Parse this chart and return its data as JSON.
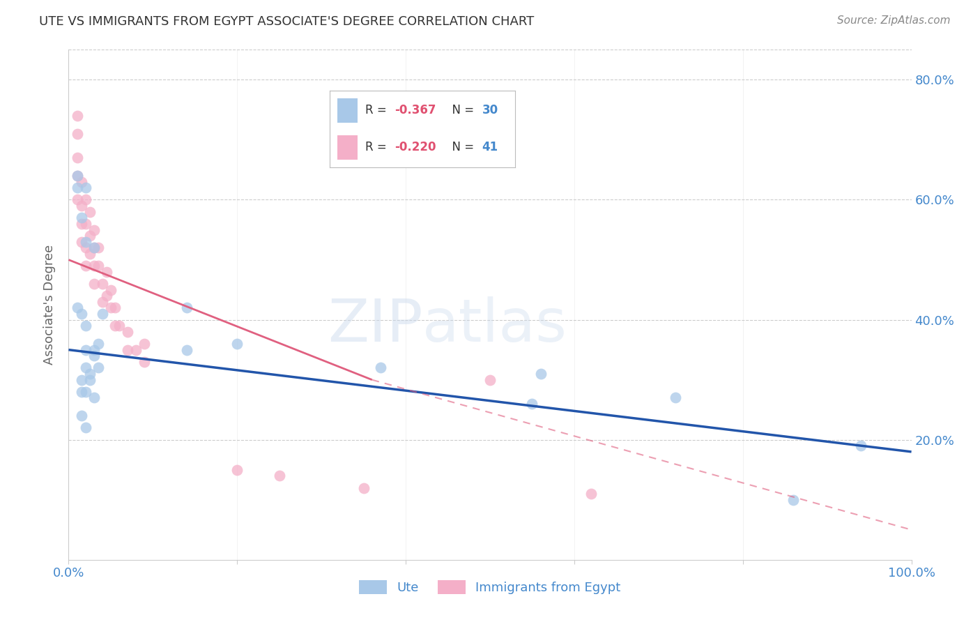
{
  "title": "UTE VS IMMIGRANTS FROM EGYPT ASSOCIATE'S DEGREE CORRELATION CHART",
  "source": "Source: ZipAtlas.com",
  "ylabel": "Associate's Degree",
  "watermark_zip": "ZIP",
  "watermark_atlas": "atlas",
  "blue_color": "#a8c8e8",
  "pink_color": "#f4afc8",
  "trendline_blue": "#2255aa",
  "trendline_pink": "#e06080",
  "background_color": "#ffffff",
  "grid_color": "#cccccc",
  "tick_color": "#4488cc",
  "title_color": "#333333",
  "source_color": "#888888",
  "legend_r_color": "#e05070",
  "legend_n_color": "#4488cc",
  "legend_label_color": "#333333",
  "blue_points_x": [
    1.0,
    1.0,
    2.0,
    1.5,
    2.0,
    3.0,
    1.0,
    1.5,
    2.0,
    4.0,
    3.0,
    2.0,
    3.5,
    3.0,
    2.0,
    2.5,
    3.5,
    1.5,
    2.5,
    1.5,
    2.0,
    3.0,
    1.5,
    2.0,
    14.0,
    20.0,
    14.0,
    37.0,
    55.0,
    56.0,
    72.0,
    86.0,
    94.0
  ],
  "blue_points_y": [
    64.0,
    62.0,
    62.0,
    57.0,
    53.0,
    52.0,
    42.0,
    41.0,
    39.0,
    41.0,
    35.0,
    35.0,
    36.0,
    34.0,
    32.0,
    31.0,
    32.0,
    30.0,
    30.0,
    28.0,
    28.0,
    27.0,
    24.0,
    22.0,
    42.0,
    36.0,
    35.0,
    32.0,
    26.0,
    31.0,
    27.0,
    10.0,
    19.0
  ],
  "pink_points_x": [
    1.0,
    1.0,
    1.0,
    1.0,
    1.0,
    1.5,
    1.5,
    1.5,
    1.5,
    2.0,
    2.0,
    2.0,
    2.0,
    2.5,
    2.5,
    2.5,
    3.0,
    3.0,
    3.0,
    3.0,
    3.5,
    3.5,
    4.0,
    4.0,
    4.5,
    4.5,
    5.0,
    5.0,
    5.5,
    5.5,
    6.0,
    7.0,
    7.0,
    8.0,
    9.0,
    9.0,
    20.0,
    25.0,
    35.0,
    50.0,
    62.0
  ],
  "pink_points_y": [
    74.0,
    71.0,
    67.0,
    64.0,
    60.0,
    63.0,
    59.0,
    56.0,
    53.0,
    60.0,
    56.0,
    52.0,
    49.0,
    58.0,
    54.0,
    51.0,
    55.0,
    52.0,
    49.0,
    46.0,
    52.0,
    49.0,
    46.0,
    43.0,
    48.0,
    44.0,
    45.0,
    42.0,
    42.0,
    39.0,
    39.0,
    38.0,
    35.0,
    35.0,
    36.0,
    33.0,
    15.0,
    14.0,
    12.0,
    30.0,
    11.0
  ],
  "blue_trend_x0": 0,
  "blue_trend_y0": 35.0,
  "blue_trend_x1": 100,
  "blue_trend_y1": 18.0,
  "pink_trend_x0": 0,
  "pink_trend_y0": 50.0,
  "pink_trend_x1_solid": 36,
  "pink_trend_y1_solid": 30.0,
  "pink_trend_x1_dashed": 100,
  "pink_trend_y1_dashed": 5.0,
  "xlim": [
    0,
    100
  ],
  "ylim": [
    0,
    85
  ],
  "yticks": [
    20,
    40,
    60,
    80
  ],
  "ytick_labels": [
    "20.0%",
    "40.0%",
    "60.0%",
    "80.0%"
  ],
  "xticks": [
    0,
    20,
    40,
    60,
    80,
    100
  ],
  "figsize": [
    14.06,
    8.92
  ],
  "dpi": 100
}
